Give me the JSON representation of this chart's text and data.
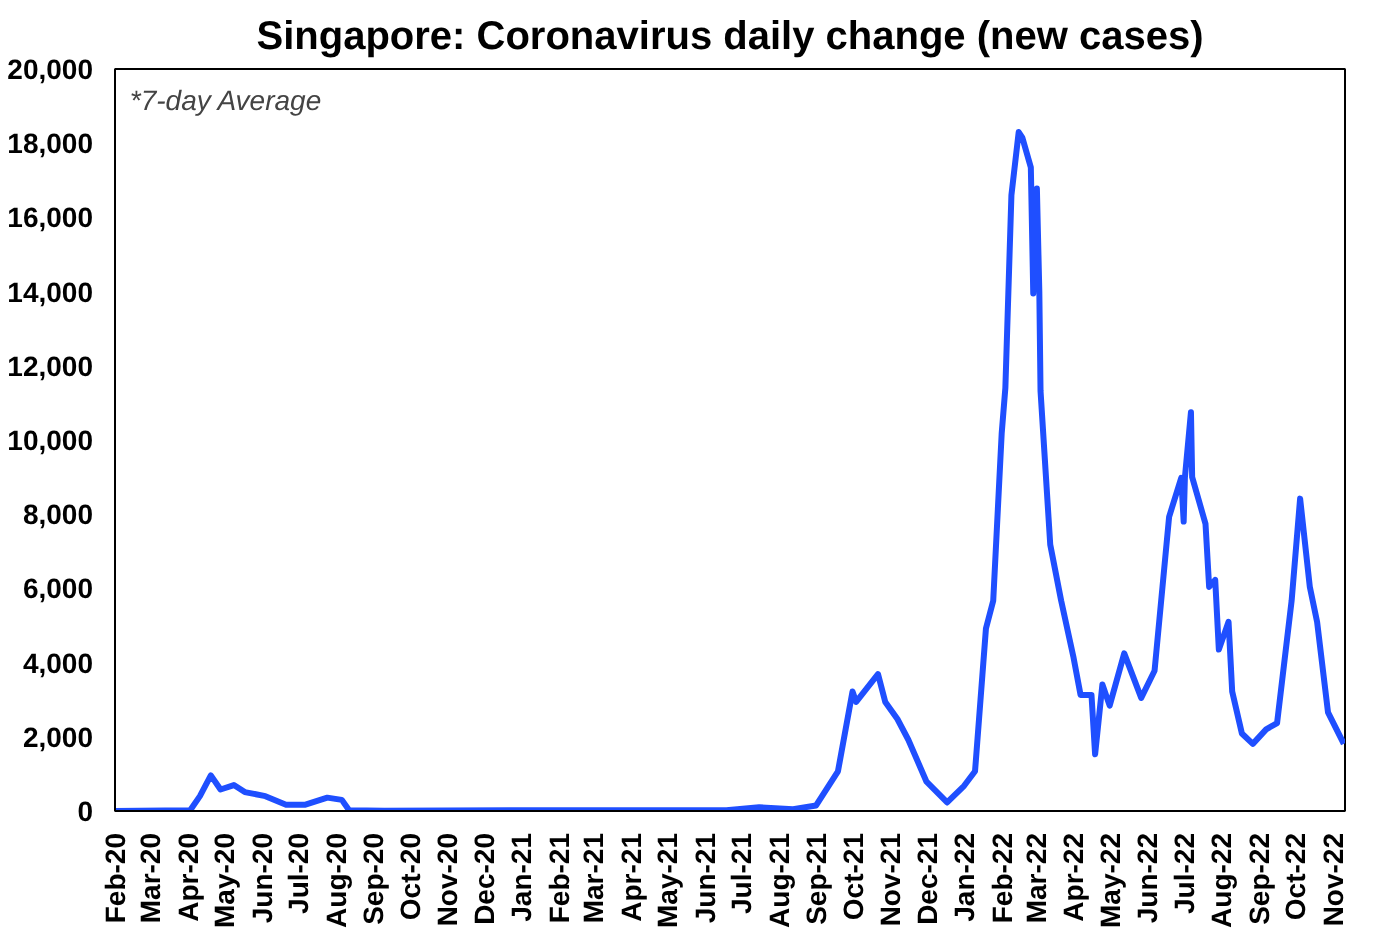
{
  "chart_data": {
    "type": "line",
    "title": "Singapore: Coronavirus daily change (new cases)",
    "annotations": [
      "*7-day Average"
    ],
    "x": [
      "2020-02-01",
      "2020-04-03",
      "2020-04-11",
      "2020-04-20",
      "2020-04-28",
      "2020-05-09",
      "2020-05-18",
      "2020-06-04",
      "2020-06-21",
      "2020-07-07",
      "2020-07-25",
      "2020-08-06",
      "2020-08-12",
      "2020-09-10",
      "2021-02-01",
      "2021-06-19",
      "2021-07-16",
      "2021-08-13",
      "2021-09-01",
      "2021-09-19",
      "2021-10-01",
      "2021-10-04",
      "2021-10-22",
      "2021-10-28",
      "2021-11-07",
      "2021-11-16",
      "2021-12-01",
      "2021-12-18",
      "2022-01-01",
      "2022-01-10",
      "2022-01-19",
      "2022-01-25",
      "2022-02-01",
      "2022-02-04",
      "2022-02-09",
      "2022-02-15",
      "2022-02-18",
      "2022-02-25",
      "2022-02-27",
      "2022-03-02",
      "2022-03-04",
      "2022-03-05",
      "2022-03-13",
      "2022-03-22",
      "2022-04-01",
      "2022-04-07",
      "2022-04-16",
      "2022-04-19",
      "2022-04-25",
      "2022-05-01",
      "2022-05-13",
      "2022-05-27",
      "2022-06-07",
      "2022-06-19",
      "2022-06-29",
      "2022-07-01",
      "2022-07-02",
      "2022-07-07",
      "2022-07-08",
      "2022-07-19",
      "2022-07-22",
      "2022-07-27",
      "2022-07-30",
      "2022-08-07",
      "2022-08-10",
      "2022-08-18",
      "2022-08-27",
      "2022-09-07",
      "2022-09-16",
      "2022-09-28",
      "2022-10-05",
      "2022-10-13",
      "2022-10-19",
      "2022-10-28",
      "2022-11-10"
    ],
    "series": [
      {
        "color": "#1f4fff",
        "values": [
          0,
          20,
          400,
          960,
          580,
          700,
          510,
          400,
          170,
          170,
          360,
          300,
          20,
          10,
          20,
          20,
          100,
          50,
          150,
          1070,
          3220,
          2940,
          3690,
          2940,
          2480,
          1920,
          790,
          230,
          680,
          1070,
          4920,
          5670,
          10190,
          11400,
          16600,
          18300,
          18150,
          17350,
          13950,
          16780,
          14000,
          11320,
          7180,
          5670,
          4170,
          3130,
          3130,
          1530,
          3410,
          2840,
          4250,
          3050,
          3780,
          7930,
          8980,
          7800,
          8980,
          10750,
          9000,
          7740,
          6040,
          6230,
          4350,
          5100,
          3220,
          2090,
          1810,
          2200,
          2370,
          5670,
          8420,
          6040,
          5100,
          2660,
          1810
        ]
      }
    ],
    "xlim": [
      "2020-02-01",
      "2022-11-11"
    ],
    "xticks": [
      {
        "value": "2020-02",
        "label": "Feb-20"
      },
      {
        "value": "2020-03",
        "label": "Mar-20"
      },
      {
        "value": "2020-04",
        "label": "Apr-20"
      },
      {
        "value": "2020-05",
        "label": "May-20"
      },
      {
        "value": "2020-06",
        "label": "Jun-20"
      },
      {
        "value": "2020-07",
        "label": "Jul-20"
      },
      {
        "value": "2020-08",
        "label": "Aug-20"
      },
      {
        "value": "2020-09",
        "label": "Sep-20"
      },
      {
        "value": "2020-10",
        "label": "Oct-20"
      },
      {
        "value": "2020-11",
        "label": "Nov-20"
      },
      {
        "value": "2020-12",
        "label": "Dec-20"
      },
      {
        "value": "2021-01",
        "label": "Jan-21"
      },
      {
        "value": "2021-02",
        "label": "Feb-21"
      },
      {
        "value": "2021-03",
        "label": "Mar-21"
      },
      {
        "value": "2021-04",
        "label": "Apr-21"
      },
      {
        "value": "2021-05",
        "label": "May-21"
      },
      {
        "value": "2021-06",
        "label": "Jun-21"
      },
      {
        "value": "2021-07",
        "label": "Jul-21"
      },
      {
        "value": "2021-08",
        "label": "Aug-21"
      },
      {
        "value": "2021-09",
        "label": "Sep-21"
      },
      {
        "value": "2021-10",
        "label": "Oct-21"
      },
      {
        "value": "2021-11",
        "label": "Nov-21"
      },
      {
        "value": "2021-12",
        "label": "Dec-21"
      },
      {
        "value": "2022-01",
        "label": "Jan-22"
      },
      {
        "value": "2022-02",
        "label": "Feb-22"
      },
      {
        "value": "2022-03",
        "label": "Mar-22"
      },
      {
        "value": "2022-04",
        "label": "Apr-22"
      },
      {
        "value": "2022-05",
        "label": "May-22"
      },
      {
        "value": "2022-06",
        "label": "Jun-22"
      },
      {
        "value": "2022-07",
        "label": "Jul-22"
      },
      {
        "value": "2022-08",
        "label": "Aug-22"
      },
      {
        "value": "2022-09",
        "label": "Sep-22"
      },
      {
        "value": "2022-10",
        "label": "Oct-22"
      },
      {
        "value": "2022-11",
        "label": "Nov-22"
      }
    ],
    "ylim": [
      0,
      20000
    ],
    "yticks": [
      0,
      {
        "value": 2000,
        "label": "2,000"
      },
      {
        "value": 4000,
        "label": "4,000"
      },
      {
        "value": 6000,
        "label": "6,000"
      },
      {
        "value": 8000,
        "label": "8,000"
      },
      {
        "value": 10000,
        "label": "10,000"
      },
      {
        "value": 12000,
        "label": "12,000"
      },
      {
        "value": 14000,
        "label": "14,000"
      },
      {
        "value": 16000,
        "label": "16,000"
      },
      {
        "value": 18000,
        "label": "18,000"
      },
      {
        "value": 20000,
        "label": "20,000"
      }
    ],
    "grid": false
  }
}
